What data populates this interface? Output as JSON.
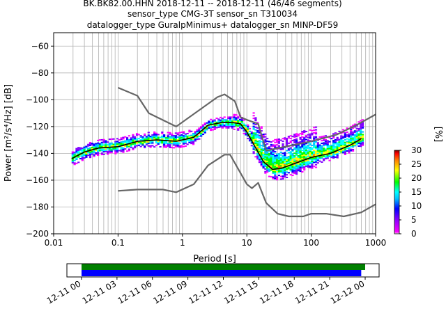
{
  "chart_data": [
    {
      "type": "heatmap",
      "title": [
        "BK.BK82.00.HHN   2018-12-11 -- 2018-12-11  (46/46 segments)",
        "sensor_type CMG-3T sensor_sn T310034",
        "datalogger_type GuralpMinimus+ datalogger_sn MINP-DF59"
      ],
      "xlabel": "Period [s]",
      "ylabel": "Power [m²/s⁴/Hz] [dB]",
      "x_scale": "log",
      "xlim": [
        0.01,
        1000
      ],
      "ylim": [
        -200,
        -50
      ],
      "x_ticks": [
        0.01,
        0.1,
        1,
        10,
        100,
        1000
      ],
      "x_tick_labels": [
        "0.01",
        "0.1",
        "1",
        "10",
        "100",
        "1000"
      ],
      "y_ticks": [
        -200,
        -180,
        -160,
        -140,
        -120,
        -100,
        -80,
        -60
      ],
      "y_tick_labels": [
        "−200",
        "−180",
        "−160",
        "−140",
        "−120",
        "−100",
        "−80",
        "−60"
      ],
      "grid": true,
      "colorbar": {
        "label": "[%]",
        "range": [
          0,
          30
        ],
        "ticks": [
          0,
          5,
          10,
          15,
          20,
          25,
          30
        ],
        "tick_labels": [
          "0",
          "5",
          "10",
          "15",
          "20",
          "25",
          "30"
        ],
        "colormap": [
          "#ffffff",
          "#ff00ff",
          "#0000ff",
          "#00ffff",
          "#00ff00",
          "#ffff00",
          "#ff8000",
          "#ff0000",
          "#800000"
        ]
      },
      "series": [
        {
          "style": "black",
          "x": [
            0.019,
            0.03,
            0.05,
            0.1,
            0.2,
            0.4,
            0.8,
            1.5,
            2.5,
            4,
            6,
            8,
            10,
            13,
            18,
            25,
            35,
            60,
            100,
            200,
            400,
            600
          ],
          "y": [
            -144,
            -139,
            -136,
            -135,
            -131,
            -130,
            -131,
            -128,
            -119,
            -117,
            -117,
            -118,
            -124,
            -134,
            -146,
            -152,
            -151,
            -147,
            -143,
            -140,
            -134,
            -129
          ]
        },
        {
          "style": "gray-upper",
          "x": [
            0.1,
            0.2,
            0.3,
            0.8,
            3.5,
            4.5,
            6.5,
            8,
            10,
            15,
            20,
            100,
            250,
            500,
            1000
          ],
          "y": [
            -91,
            -97,
            -110,
            -120,
            -98,
            -96,
            -101,
            -113,
            -115,
            -118,
            -138,
            -131,
            -126,
            -119,
            -111
          ]
        },
        {
          "style": "gray-lower",
          "x": [
            0.1,
            0.2,
            0.5,
            0.8,
            1.5,
            2.5,
            4.5,
            5.5,
            10,
            12,
            15,
            20,
            30,
            45,
            75,
            100,
            170,
            320,
            600,
            1000
          ],
          "y": [
            -168,
            -167,
            -167,
            -169,
            -163,
            -149,
            -141,
            -141,
            -163,
            -166,
            -162,
            -177,
            -185,
            -187,
            -187,
            -185,
            -185,
            -187,
            -184,
            -178
          ]
        }
      ]
    },
    {
      "type": "bar",
      "x_tick_labels": [
        "12-11 00",
        "12-11 03",
        "12-11 06",
        "12-11 09",
        "12-11 12",
        "12-11 15",
        "12-11 18",
        "12-11 21",
        "12-12 00"
      ],
      "series": [
        {
          "name": "",
          "color": "#008000",
          "start": "12-11 00",
          "end": "12-12 00"
        },
        {
          "name": "",
          "color": "#0000ff",
          "start": "12-11 00",
          "end": "12-11 23:40"
        }
      ]
    }
  ]
}
